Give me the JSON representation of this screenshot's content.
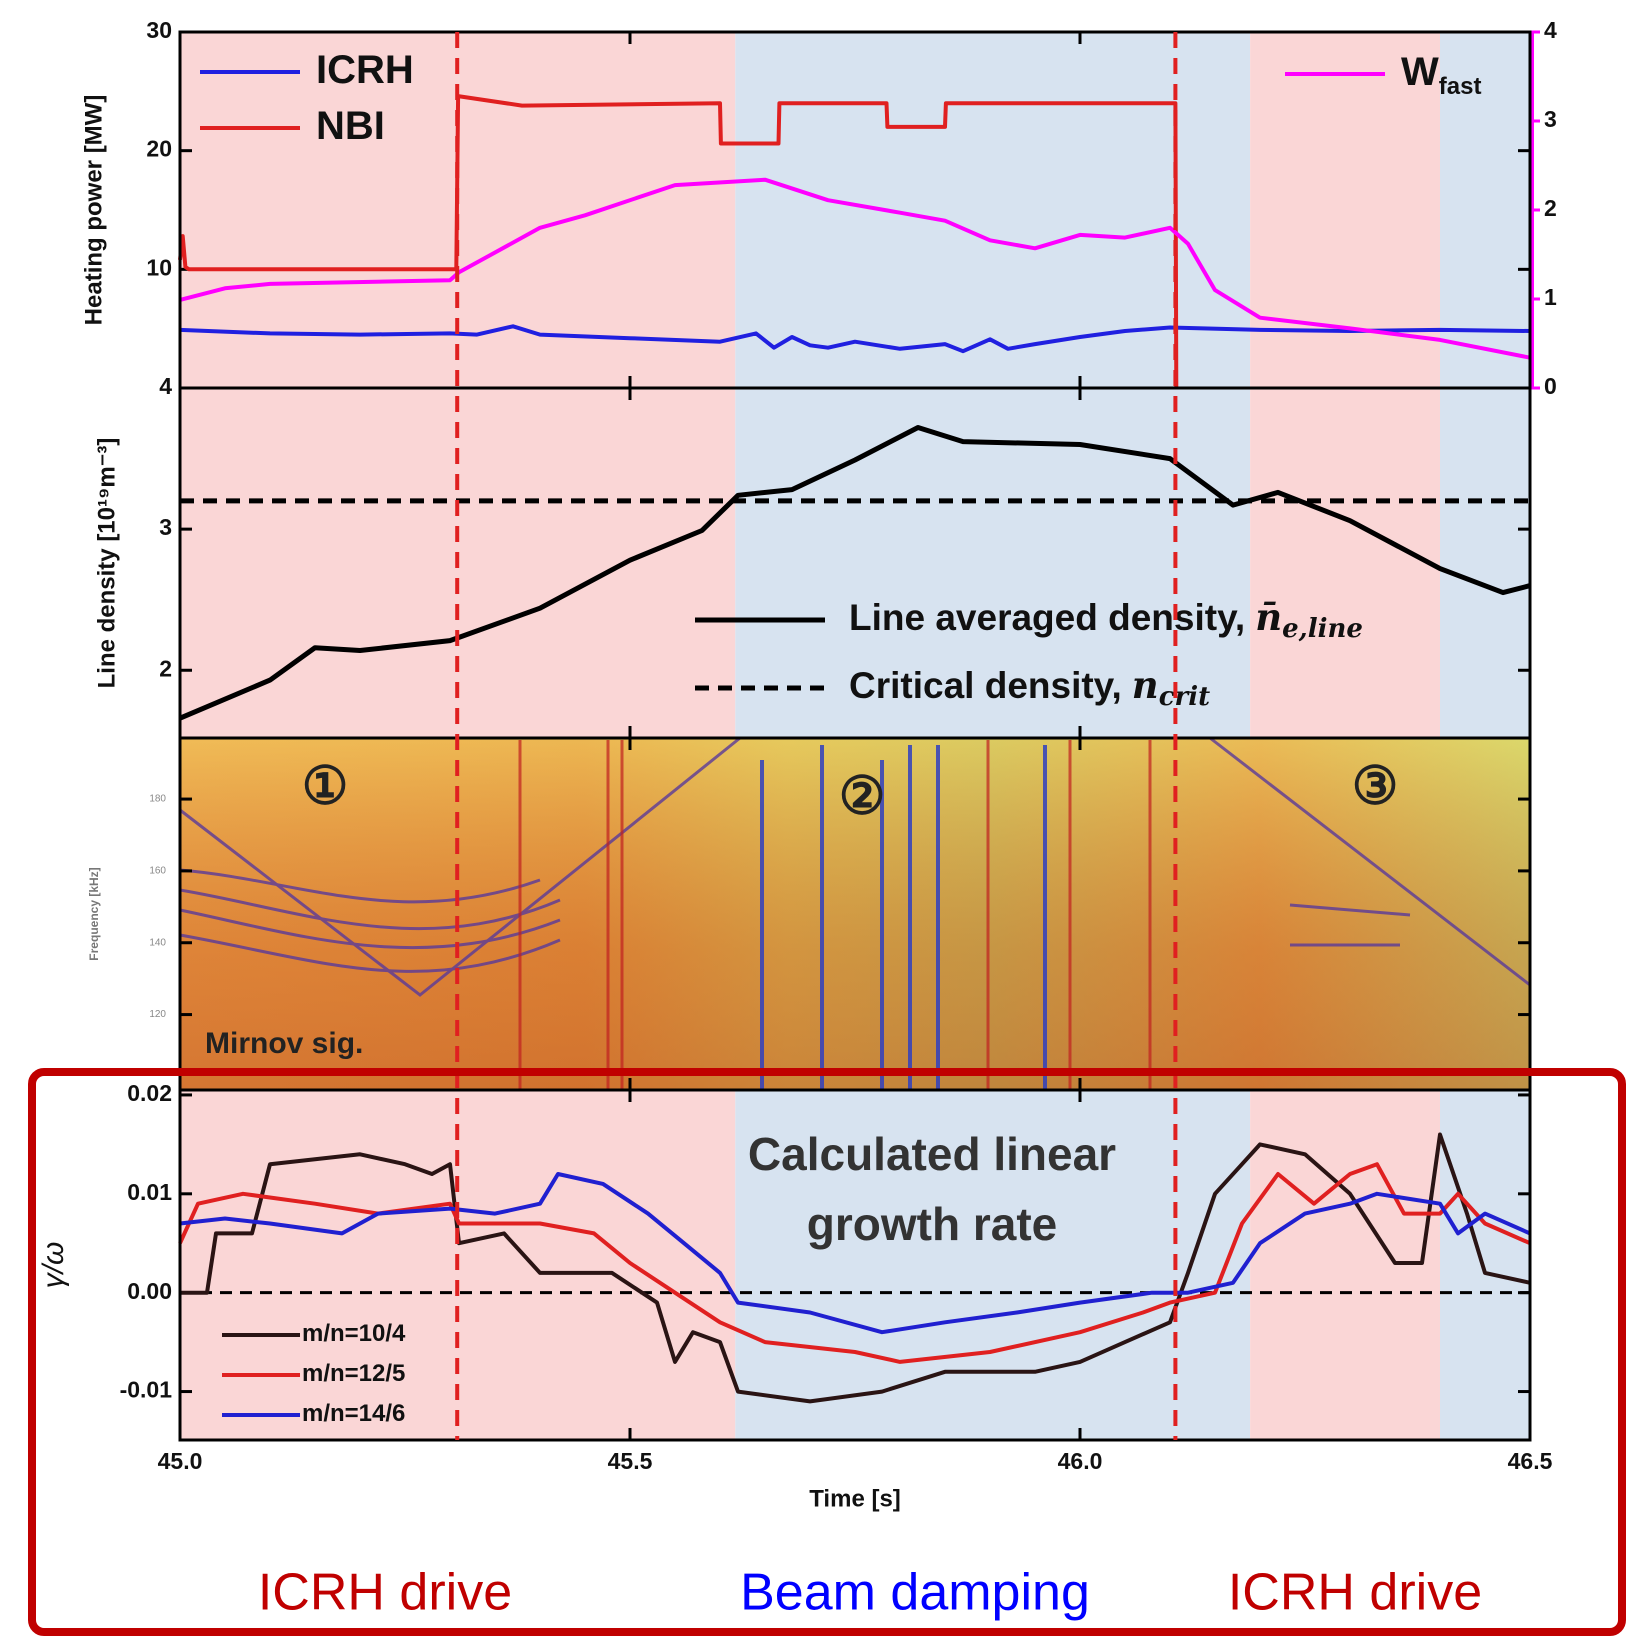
{
  "chart_data": [
    {
      "type": "line",
      "ylabel": "Heating power [MW]",
      "xlim": [
        45.0,
        46.5
      ],
      "ylim": [
        0,
        30
      ],
      "yticks": [
        10,
        20,
        30
      ],
      "y2lim": [
        0,
        4
      ],
      "y2ticks": [
        0,
        1,
        2,
        3,
        4
      ],
      "y2color": "#ff00ff",
      "series": [
        {
          "name": "ICRH",
          "color": "#2020e0",
          "x": [
            45.0,
            45.1,
            45.2,
            45.3,
            45.33,
            45.37,
            45.4,
            45.5,
            45.6,
            45.64,
            45.66,
            45.68,
            45.7,
            45.72,
            45.75,
            45.8,
            45.85,
            45.87,
            45.9,
            45.92,
            45.95,
            46.0,
            46.05,
            46.1,
            46.2,
            46.3,
            46.4,
            46.5
          ],
          "values": [
            4.9,
            4.6,
            4.5,
            4.6,
            4.5,
            5.2,
            4.5,
            4.2,
            3.9,
            4.6,
            3.4,
            4.3,
            3.6,
            3.4,
            3.9,
            3.3,
            3.7,
            3.1,
            4.1,
            3.3,
            3.7,
            4.3,
            4.8,
            5.1,
            4.9,
            4.8,
            4.9,
            4.8
          ]
        },
        {
          "name": "NBI",
          "color": "#e02020",
          "x": [
            45.0,
            45.003,
            45.006,
            45.01,
            45.307,
            45.309,
            45.38,
            45.6,
            45.601,
            45.665,
            45.666,
            45.785,
            45.786,
            45.85,
            45.851,
            46.106,
            46.107
          ],
          "values": [
            10.8,
            12.8,
            10.2,
            10,
            10,
            24.6,
            23.8,
            24,
            20.6,
            20.6,
            24,
            24,
            22,
            22,
            24,
            24,
            0
          ]
        },
        {
          "name": "W",
          "name_subscript": "fast",
          "color": "#ff00ff",
          "axis": "y2",
          "x": [
            45.0,
            45.05,
            45.1,
            45.3,
            45.31,
            45.4,
            45.45,
            45.55,
            45.65,
            45.72,
            45.8,
            45.85,
            45.9,
            45.95,
            46.0,
            46.05,
            46.1,
            46.12,
            46.15,
            46.2,
            46.3,
            46.4,
            46.5
          ],
          "values": [
            0.99,
            1.12,
            1.17,
            1.21,
            1.3,
            1.8,
            1.94,
            2.28,
            2.34,
            2.11,
            1.97,
            1.88,
            1.66,
            1.57,
            1.72,
            1.69,
            1.8,
            1.62,
            1.1,
            0.79,
            0.67,
            0.54,
            0.34
          ]
        }
      ]
    },
    {
      "type": "line",
      "ylabel": "Line density [10¹⁹m⁻³]",
      "xlim": [
        45.0,
        46.5
      ],
      "ylim": [
        1.52,
        4
      ],
      "yticks": [
        2,
        3,
        4
      ],
      "series": [
        {
          "name": "Line averaged density,",
          "symbol": "n̄",
          "symbol_subscript": "e,line",
          "color": "#000000",
          "x": [
            45.0,
            45.1,
            45.15,
            45.2,
            45.3,
            45.4,
            45.5,
            45.58,
            45.62,
            45.68,
            45.75,
            45.82,
            45.87,
            46.0,
            46.1,
            46.17,
            46.22,
            46.3,
            46.4,
            46.47,
            46.5
          ],
          "values": [
            1.66,
            1.93,
            2.16,
            2.14,
            2.21,
            2.44,
            2.78,
            2.99,
            3.24,
            3.28,
            3.49,
            3.72,
            3.62,
            3.6,
            3.5,
            3.17,
            3.26,
            3.06,
            2.72,
            2.55,
            2.6
          ]
        },
        {
          "name": "Critical density,",
          "symbol": "n",
          "symbol_subscript": "crit",
          "color": "#000000",
          "dash": true,
          "x": [
            45.0,
            46.5
          ],
          "values": [
            3.2,
            3.2
          ]
        }
      ]
    },
    {
      "type": "spectrogram",
      "ylabel": "Frequency [kHz]",
      "xlim": [
        45.0,
        46.5
      ],
      "ylim": [
        99,
        197
      ],
      "yticks": [
        120,
        140,
        160,
        180
      ],
      "annotations": [
        "Mirnov sig.",
        "①",
        "②",
        "③"
      ]
    },
    {
      "type": "line",
      "ylabel": "γ/ω",
      "xlabel": "Time [s]",
      "xlim": [
        45.0,
        46.5
      ],
      "ylim": [
        -0.0149,
        0.0205
      ],
      "xticks": [
        {
          "value": 45.0,
          "label": "45.0"
        },
        45.5,
        {
          "value": 46.0,
          "label": "46.0"
        },
        46.5
      ],
      "yticks": [
        0.02,
        0.01,
        {
          "value": 0,
          "label": "0.00"
        },
        -0.01
      ],
      "hline": 0,
      "annotation": [
        "Calculated linear",
        "growth rate"
      ],
      "series": [
        {
          "name": "m/n=10/4",
          "color": "#2a1414",
          "x": [
            45.0,
            45.03,
            45.04,
            45.08,
            45.1,
            45.2,
            45.25,
            45.28,
            45.3,
            45.31,
            45.36,
            45.4,
            45.48,
            45.53,
            45.55,
            45.57,
            45.6,
            45.62,
            45.7,
            45.78,
            45.85,
            45.95,
            46.0,
            46.05,
            46.1,
            46.12,
            46.15,
            46.18,
            46.2,
            46.25,
            46.3,
            46.35,
            46.38,
            46.4,
            46.43,
            46.45,
            46.5
          ],
          "values": [
            0,
            0,
            0.006,
            0.006,
            0.013,
            0.014,
            0.013,
            0.012,
            0.013,
            0.005,
            0.006,
            0.002,
            0.002,
            -0.001,
            -0.007,
            -0.004,
            -0.005,
            -0.01,
            -0.011,
            -0.01,
            -0.008,
            -0.008,
            -0.007,
            -0.005,
            -0.003,
            0.002,
            0.01,
            0.013,
            0.015,
            0.014,
            0.01,
            0.003,
            0.003,
            0.016,
            0.008,
            0.002,
            0.001
          ]
        },
        {
          "name": "m/n=12/5",
          "color": "#e02020",
          "x": [
            45.0,
            45.02,
            45.07,
            45.15,
            45.22,
            45.3,
            45.31,
            45.4,
            45.46,
            45.5,
            45.55,
            45.6,
            45.65,
            45.75,
            45.8,
            45.9,
            46.0,
            46.07,
            46.1,
            46.15,
            46.18,
            46.22,
            46.26,
            46.3,
            46.33,
            46.36,
            46.4,
            46.42,
            46.45,
            46.5
          ],
          "values": [
            0.005,
            0.009,
            0.01,
            0.009,
            0.008,
            0.009,
            0.007,
            0.007,
            0.006,
            0.003,
            0,
            -0.003,
            -0.005,
            -0.006,
            -0.007,
            -0.006,
            -0.004,
            -0.002,
            -0.001,
            0,
            0.007,
            0.012,
            0.009,
            0.012,
            0.013,
            0.008,
            0.008,
            0.01,
            0.007,
            0.005
          ]
        },
        {
          "name": "m/n=14/6",
          "color": "#2020d0",
          "x": [
            45.0,
            45.05,
            45.1,
            45.18,
            45.22,
            45.3,
            45.35,
            45.4,
            45.42,
            45.47,
            45.52,
            45.56,
            45.6,
            45.62,
            45.7,
            45.78,
            45.85,
            45.93,
            46.0,
            46.08,
            46.12,
            46.17,
            46.2,
            46.25,
            46.3,
            46.33,
            46.4,
            46.42,
            46.45,
            46.5
          ],
          "values": [
            0.007,
            0.0075,
            0.007,
            0.006,
            0.008,
            0.0085,
            0.008,
            0.009,
            0.012,
            0.011,
            0.008,
            0.005,
            0.002,
            -0.001,
            -0.002,
            -0.004,
            -0.003,
            -0.002,
            -0.001,
            0,
            0,
            0.001,
            0.005,
            0.008,
            0.009,
            0.01,
            0.009,
            0.006,
            0.008,
            0.006
          ]
        }
      ]
    }
  ],
  "shading": [
    {
      "x": [
        45.0,
        45.617
      ],
      "color": "#fad6d6"
    },
    {
      "x": [
        45.617,
        46.189
      ],
      "color": "#d7e3f0"
    },
    {
      "x": [
        46.189,
        46.4
      ],
      "color": "#fad6d6"
    },
    {
      "x": [
        46.4,
        46.5
      ],
      "color": "#d7e3f0"
    }
  ],
  "event_lines": {
    "x": [
      45.308,
      46.106
    ],
    "color": "#e02020"
  },
  "phase_labels": [
    {
      "text": "ICRH drive",
      "color": "#c00000"
    },
    {
      "text": "Beam damping",
      "color": "#0000ff"
    },
    {
      "text": "ICRH drive",
      "color": "#c00000"
    }
  ]
}
